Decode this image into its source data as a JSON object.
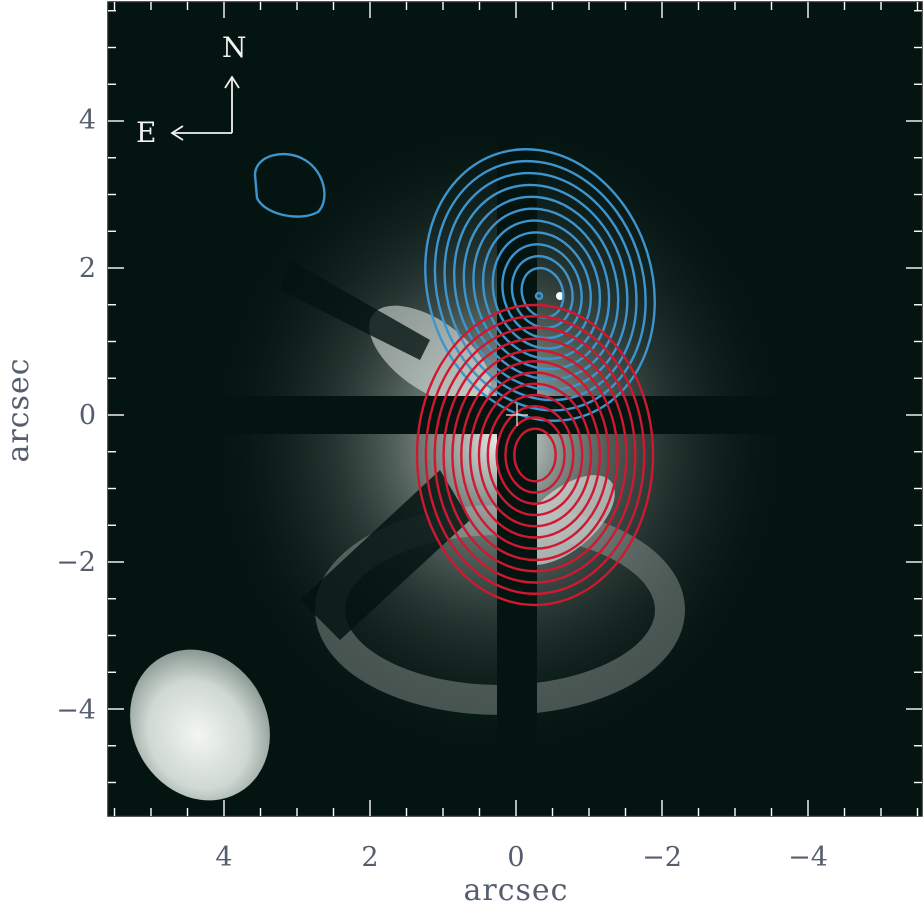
{
  "axes": {
    "x_label": "arcsec",
    "y_label": "arcsec",
    "x_ticks": [
      "4",
      "2",
      "0",
      "−2",
      "−4"
    ],
    "y_ticks": [
      "4",
      "2",
      "0",
      "−2",
      "−4"
    ]
  },
  "compass": {
    "north": "N",
    "east": "E"
  },
  "colors": {
    "background": "#041410",
    "blue_contours": "#3d95cf",
    "red_contours": "#d01830",
    "beam": "#e6ece9"
  }
}
